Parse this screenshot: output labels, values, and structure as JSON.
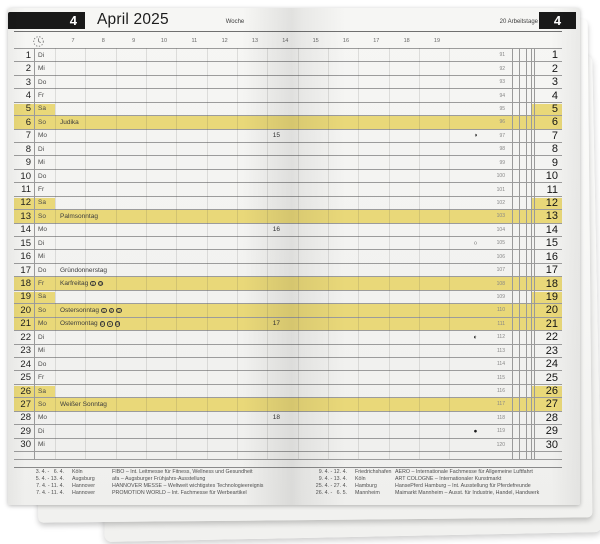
{
  "header": {
    "month_tab": "4",
    "title": "April 2025",
    "week_label": "Woche",
    "workdays_label": "20 Arbeitstage"
  },
  "timeline": {
    "hours": [
      "7",
      "8",
      "9",
      "10",
      "11",
      "12",
      "13",
      "14",
      "15",
      "16",
      "17",
      "18",
      "19"
    ],
    "clock_icon": "clock"
  },
  "colors": {
    "weekend_highlight": "#e9d879",
    "tab_background": "#191919",
    "paper": "#f3f3f1"
  },
  "moon_legend": {
    "first_quarter": "◑",
    "full_moon": "○",
    "last_quarter": "◐",
    "new_moon": "●"
  },
  "days": [
    {
      "day": "1",
      "weekday": "Di",
      "day_of_year": "91"
    },
    {
      "day": "2",
      "weekday": "Mi",
      "day_of_year": "92"
    },
    {
      "day": "3",
      "weekday": "Do",
      "day_of_year": "93"
    },
    {
      "day": "4",
      "weekday": "Fr",
      "day_of_year": "94"
    },
    {
      "day": "5",
      "weekday": "Sa",
      "day_of_year": "95",
      "highlight": "partial"
    },
    {
      "day": "6",
      "weekday": "So",
      "day_of_year": "96",
      "highlight": "full",
      "note": "Judika"
    },
    {
      "day": "7",
      "weekday": "Mo",
      "day_of_year": "97",
      "week": "15",
      "moon": "◑"
    },
    {
      "day": "8",
      "weekday": "Di",
      "day_of_year": "98"
    },
    {
      "day": "9",
      "weekday": "Mi",
      "day_of_year": "99"
    },
    {
      "day": "10",
      "weekday": "Do",
      "day_of_year": "100"
    },
    {
      "day": "11",
      "weekday": "Fr",
      "day_of_year": "101"
    },
    {
      "day": "12",
      "weekday": "Sa",
      "day_of_year": "102",
      "highlight": "partial"
    },
    {
      "day": "13",
      "weekday": "So",
      "day_of_year": "103",
      "highlight": "full",
      "note": "Palmsonntag"
    },
    {
      "day": "14",
      "weekday": "Mo",
      "day_of_year": "104",
      "week": "16"
    },
    {
      "day": "15",
      "weekday": "Di",
      "day_of_year": "105",
      "moon": "○"
    },
    {
      "day": "16",
      "weekday": "Mi",
      "day_of_year": "106"
    },
    {
      "day": "17",
      "weekday": "Do",
      "day_of_year": "107",
      "note": "Gründonnerstag"
    },
    {
      "day": "18",
      "weekday": "Fr",
      "day_of_year": "108",
      "highlight": "full",
      "note": "Karfreitag",
      "marks": [
        "D",
        "CH"
      ]
    },
    {
      "day": "19",
      "weekday": "Sa",
      "day_of_year": "109",
      "highlight": "partial"
    },
    {
      "day": "20",
      "weekday": "So",
      "day_of_year": "110",
      "highlight": "full",
      "note": "Ostersonntag",
      "marks": [
        "D",
        "A",
        "CH"
      ]
    },
    {
      "day": "21",
      "weekday": "Mo",
      "day_of_year": "111",
      "highlight": "full",
      "note": "Ostermontag",
      "marks": [
        "D",
        "A",
        "CH"
      ],
      "week": "17"
    },
    {
      "day": "22",
      "weekday": "Di",
      "day_of_year": "112",
      "moon": "◐"
    },
    {
      "day": "23",
      "weekday": "Mi",
      "day_of_year": "113"
    },
    {
      "day": "24",
      "weekday": "Do",
      "day_of_year": "114"
    },
    {
      "day": "25",
      "weekday": "Fr",
      "day_of_year": "115"
    },
    {
      "day": "26",
      "weekday": "Sa",
      "day_of_year": "116",
      "highlight": "partial"
    },
    {
      "day": "27",
      "weekday": "So",
      "day_of_year": "117",
      "highlight": "full",
      "note": "Weißer Sonntag"
    },
    {
      "day": "28",
      "weekday": "Mo",
      "day_of_year": "118",
      "week": "18"
    },
    {
      "day": "29",
      "weekday": "Di",
      "day_of_year": "119",
      "moon": "●"
    },
    {
      "day": "30",
      "weekday": "Mi",
      "day_of_year": "120"
    }
  ],
  "fairs_left": [
    {
      "dates": "3. 4. -   6. 4.",
      "city": "Köln",
      "desc": "FIBO – Int. Leitmesse für Fitness, Wellness und Gesundheit"
    },
    {
      "dates": "5. 4. - 13. 4.",
      "city": "Augsburg",
      "desc": "afa – Augsburger Frühjahrs-Ausstellung"
    },
    {
      "dates": "7. 4. - 11. 4.",
      "city": "Hannover",
      "desc": "HANNOVER MESSE – Weltweit wichtigstes Technologieereignis"
    },
    {
      "dates": "7. 4. - 11. 4.",
      "city": "Hannover",
      "desc": "PROMOTION WORLD – Int. Fachmesse für Werbeartikel"
    }
  ],
  "fairs_right": [
    {
      "dates": "9. 4. - 12. 4.",
      "city": "Friedrichshafen",
      "desc": "AERO – Internationale Fachmesse für Allgemeine Luftfahrt"
    },
    {
      "dates": "9. 4. - 13. 4.",
      "city": "Köln",
      "desc": "ART COLOGNE – Internationaler Kunstmarkt"
    },
    {
      "dates": "25. 4. - 27. 4.",
      "city": "Hamburg",
      "desc": "HansePferd Hamburg – Int. Ausstellung für Pferdefreunde"
    },
    {
      "dates": "26. 4. -   6. 5.",
      "city": "Mannheim",
      "desc": "Maimarkt Mannheim – Ausst. für Industrie, Handel, Handwerk"
    }
  ]
}
